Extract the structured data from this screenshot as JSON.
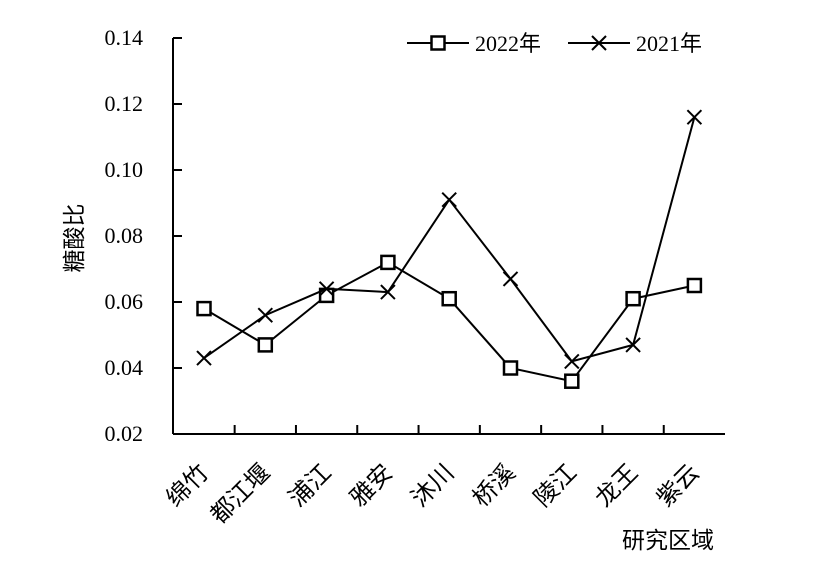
{
  "chart_data": {
    "type": "line",
    "title": "",
    "xlabel": "研究区域",
    "ylabel": "糖酸比",
    "categories": [
      "绵竹",
      "都江堰",
      "浦江",
      "雅安",
      "沐川",
      "桥溪",
      "陵江",
      "龙王",
      "紫云"
    ],
    "ylim": [
      0.02,
      0.14
    ],
    "yticks": [
      "0.02",
      "0.04",
      "0.06",
      "0.08",
      "0.10",
      "0.12",
      "0.14"
    ],
    "grid": false,
    "legend_position": "top-right",
    "series": [
      {
        "name": "2022年",
        "marker": "square",
        "color": "#000000",
        "values": [
          0.058,
          0.047,
          0.062,
          0.072,
          0.061,
          0.04,
          0.036,
          0.061,
          0.065
        ]
      },
      {
        "name": "2021年",
        "marker": "x",
        "color": "#000000",
        "values": [
          0.043,
          0.056,
          0.064,
          0.063,
          0.091,
          0.067,
          0.042,
          0.047,
          0.116
        ]
      }
    ]
  }
}
